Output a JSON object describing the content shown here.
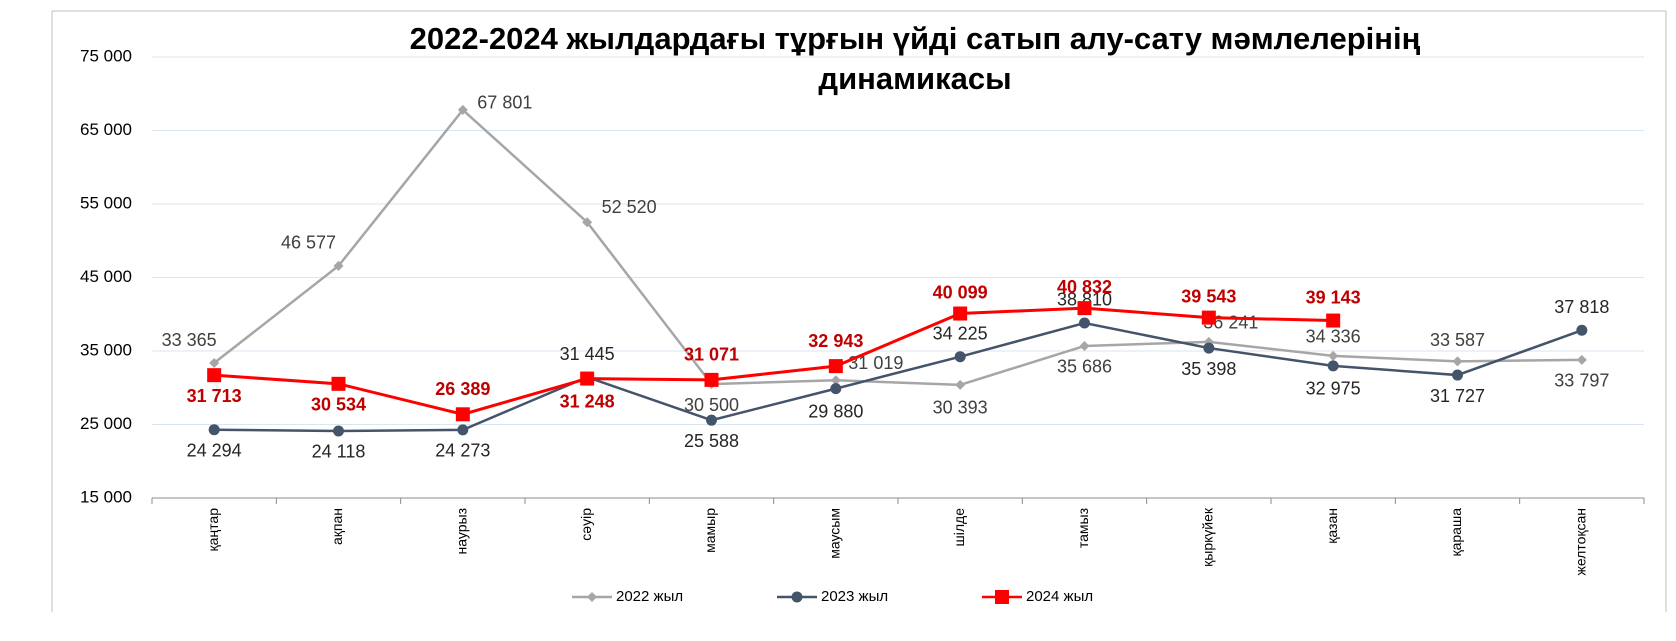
{
  "chart_data": {
    "type": "line",
    "title": "2022-2024 жылдардағы тұрғын үйді сатып алу-сату мәмлелерінің динамикасы",
    "categories": [
      "қаңтар",
      "ақпан",
      "наурыз",
      "сәуір",
      "мамыр",
      "маусым",
      "шілде",
      "тамыз",
      "қыркүйек",
      "қазан",
      "қараша",
      "желтоқсан"
    ],
    "series": [
      {
        "name": "2022 жыл",
        "color": "#a6a6a6",
        "marker": "diamond",
        "values": [
          33365,
          46577,
          67801,
          52520,
          30500,
          31019,
          30393,
          35686,
          36241,
          34336,
          33587,
          33797
        ],
        "value_labels": [
          "33 365",
          "46 577",
          "67 801",
          "52 520",
          "30 500",
          "31 019",
          "30 393",
          "35 686",
          "36 241",
          "34 336",
          "33 587",
          "33 797"
        ]
      },
      {
        "name": "2023 жыл",
        "color": "#44546a",
        "marker": "circle",
        "values": [
          24294,
          24118,
          24273,
          31445,
          25588,
          29880,
          34225,
          38810,
          35398,
          32975,
          31727,
          37818
        ],
        "value_labels": [
          "24 294",
          "24 118",
          "24 273",
          "31 445",
          "25 588",
          "29 880",
          "34 225",
          "38 810",
          "35 398",
          "32 975",
          "31 727",
          "37 818"
        ]
      },
      {
        "name": "2024 жыл",
        "color": "#ff0000",
        "marker": "square",
        "values": [
          31713,
          30534,
          26389,
          31248,
          31071,
          32943,
          40099,
          40832,
          39543,
          39143,
          null,
          null
        ],
        "value_labels": [
          "31 713",
          "30 534",
          "26 389",
          "31 248",
          "31 071",
          "32 943",
          "40 099",
          "40 832",
          "39 543",
          "39 143",
          null,
          null
        ]
      }
    ],
    "ylim": [
      15000,
      75000
    ],
    "yticks": [
      {
        "value": 15000,
        "label": "15 000"
      },
      {
        "value": 25000,
        "label": "25 000"
      },
      {
        "value": 35000,
        "label": "35 000"
      },
      {
        "value": 45000,
        "label": "45 000"
      },
      {
        "value": 55000,
        "label": "55 000"
      },
      {
        "value": 65000,
        "label": "65 000"
      },
      {
        "value": 75000,
        "label": "75 000"
      }
    ],
    "grid": true,
    "legend": "bottom"
  }
}
